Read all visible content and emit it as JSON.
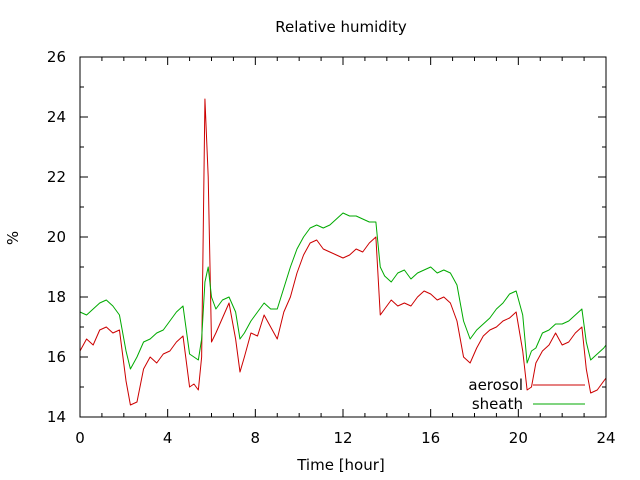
{
  "chart_data": {
    "type": "line",
    "title": "Relative humidity",
    "xlabel": "Time [hour]",
    "ylabel": "%",
    "xlim": [
      0,
      24
    ],
    "ylim": [
      14,
      26
    ],
    "xticks": [
      0,
      4,
      8,
      12,
      16,
      20,
      24
    ],
    "yticks": [
      14,
      16,
      18,
      20,
      22,
      24,
      26
    ],
    "grid": false,
    "legend_position": "bottom-right",
    "series": [
      {
        "name": "aerosol",
        "color": "#cc0000",
        "x": [
          0,
          0.3,
          0.6,
          0.9,
          1.2,
          1.5,
          1.8,
          2.1,
          2.3,
          2.6,
          2.9,
          3.2,
          3.5,
          3.8,
          4.1,
          4.4,
          4.7,
          5.0,
          5.2,
          5.4,
          5.55,
          5.7,
          5.85,
          6.0,
          6.2,
          6.5,
          6.8,
          7.1,
          7.3,
          7.5,
          7.8,
          8.1,
          8.4,
          8.7,
          9.0,
          9.3,
          9.6,
          9.9,
          10.2,
          10.5,
          10.8,
          11.1,
          11.4,
          11.7,
          12.0,
          12.3,
          12.6,
          12.9,
          13.2,
          13.5,
          13.7,
          13.9,
          14.2,
          14.5,
          14.8,
          15.1,
          15.4,
          15.7,
          16.0,
          16.3,
          16.6,
          16.9,
          17.2,
          17.5,
          17.8,
          18.1,
          18.4,
          18.7,
          19.0,
          19.3,
          19.6,
          19.9,
          20.2,
          20.4,
          20.6,
          20.8,
          21.1,
          21.4,
          21.7,
          22.0,
          22.3,
          22.6,
          22.9,
          23.1,
          23.3,
          23.6,
          23.9,
          24.0
        ],
        "y": [
          16.2,
          16.6,
          16.4,
          16.9,
          17.0,
          16.8,
          16.9,
          15.2,
          14.4,
          14.5,
          15.6,
          16.0,
          15.8,
          16.1,
          16.2,
          16.5,
          16.7,
          15.0,
          15.1,
          14.9,
          16.0,
          24.6,
          22.0,
          16.5,
          16.8,
          17.3,
          17.8,
          16.6,
          15.5,
          16.0,
          16.8,
          16.7,
          17.4,
          17.0,
          16.6,
          17.5,
          18.0,
          18.8,
          19.4,
          19.8,
          19.9,
          19.6,
          19.5,
          19.4,
          19.3,
          19.4,
          19.6,
          19.5,
          19.8,
          20.0,
          17.4,
          17.6,
          17.9,
          17.7,
          17.8,
          17.7,
          18.0,
          18.2,
          18.1,
          17.9,
          18.0,
          17.8,
          17.2,
          16.0,
          15.8,
          16.3,
          16.7,
          16.9,
          17.0,
          17.2,
          17.3,
          17.5,
          16.2,
          14.9,
          15.0,
          15.8,
          16.2,
          16.4,
          16.8,
          16.4,
          16.5,
          16.8,
          17.0,
          15.6,
          14.8,
          14.9,
          15.2,
          15.3
        ]
      },
      {
        "name": "sheath",
        "color": "#00aa00",
        "x": [
          0,
          0.3,
          0.6,
          0.9,
          1.2,
          1.5,
          1.8,
          2.1,
          2.3,
          2.6,
          2.9,
          3.2,
          3.5,
          3.8,
          4.1,
          4.4,
          4.7,
          5.0,
          5.2,
          5.4,
          5.55,
          5.7,
          5.85,
          6.0,
          6.2,
          6.5,
          6.8,
          7.1,
          7.3,
          7.5,
          7.8,
          8.1,
          8.4,
          8.7,
          9.0,
          9.3,
          9.6,
          9.9,
          10.2,
          10.5,
          10.8,
          11.1,
          11.4,
          11.7,
          12.0,
          12.3,
          12.6,
          12.9,
          13.2,
          13.5,
          13.7,
          13.9,
          14.2,
          14.5,
          14.8,
          15.1,
          15.4,
          15.7,
          16.0,
          16.3,
          16.6,
          16.9,
          17.2,
          17.5,
          17.8,
          18.1,
          18.4,
          18.7,
          19.0,
          19.3,
          19.6,
          19.9,
          20.2,
          20.4,
          20.6,
          20.8,
          21.1,
          21.4,
          21.7,
          22.0,
          22.3,
          22.6,
          22.9,
          23.1,
          23.3,
          23.6,
          23.9,
          24.0
        ],
        "y": [
          17.5,
          17.4,
          17.6,
          17.8,
          17.9,
          17.7,
          17.4,
          16.2,
          15.6,
          16.0,
          16.5,
          16.6,
          16.8,
          16.9,
          17.2,
          17.5,
          17.7,
          16.1,
          16.0,
          15.9,
          16.6,
          18.5,
          19.0,
          18.0,
          17.6,
          17.9,
          18.0,
          17.5,
          16.6,
          16.8,
          17.2,
          17.5,
          17.8,
          17.6,
          17.6,
          18.3,
          19.0,
          19.6,
          20.0,
          20.3,
          20.4,
          20.3,
          20.4,
          20.6,
          20.8,
          20.7,
          20.7,
          20.6,
          20.5,
          20.5,
          19.0,
          18.7,
          18.5,
          18.8,
          18.9,
          18.6,
          18.8,
          18.9,
          19.0,
          18.8,
          18.9,
          18.8,
          18.4,
          17.2,
          16.6,
          16.9,
          17.1,
          17.3,
          17.6,
          17.8,
          18.1,
          18.2,
          17.4,
          15.8,
          16.2,
          16.3,
          16.8,
          16.9,
          17.1,
          17.1,
          17.2,
          17.4,
          17.6,
          16.5,
          15.9,
          16.1,
          16.3,
          16.4
        ]
      }
    ]
  }
}
